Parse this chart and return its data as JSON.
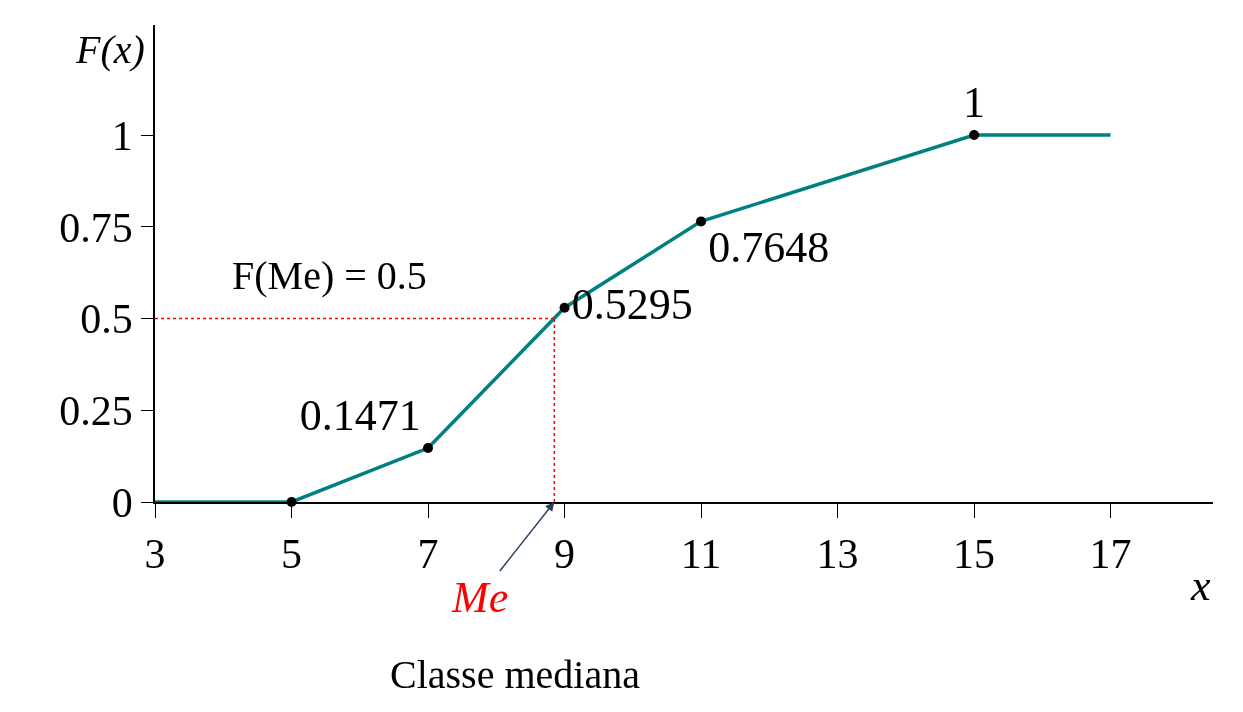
{
  "chart_data": {
    "type": "line",
    "xlabel": "x",
    "ylabel": "F(x)",
    "x": [
      3,
      5,
      7,
      9,
      11,
      15,
      17
    ],
    "series": [
      {
        "color": "#008080",
        "values": [
          0,
          0,
          0.1471,
          0.5295,
          0.7648,
          1,
          1
        ],
        "marker": "none"
      },
      {
        "type": "scatter",
        "color": "#000000",
        "x": [
          5,
          7,
          9,
          11,
          15
        ],
        "values": [
          0,
          0.1471,
          0.5295,
          0.7648,
          1
        ],
        "marker": "circle",
        "value_labels": [
          null,
          "0.1471",
          "0.5295",
          "0.7648",
          "1"
        ]
      }
    ],
    "xlim": [
      3,
      18.5
    ],
    "ylim": [
      0,
      1.3
    ],
    "xticks": [
      3,
      5,
      7,
      9,
      11,
      13,
      15,
      17
    ],
    "yticks": [
      0,
      0.25,
      0.5,
      0.75,
      1
    ],
    "ref_lines": [
      {
        "axis": "y",
        "value": 0.5,
        "color": "#ff0000",
        "line_style": "dotted"
      },
      {
        "axis": "x",
        "value": 8.85,
        "color": "#ff0000",
        "line_style": "dotted"
      }
    ],
    "annotations": [
      "F(Me) = 0.5",
      {
        "text": "Me",
        "x": 8.85,
        "y": 0
      },
      "Classe mediana"
    ]
  }
}
